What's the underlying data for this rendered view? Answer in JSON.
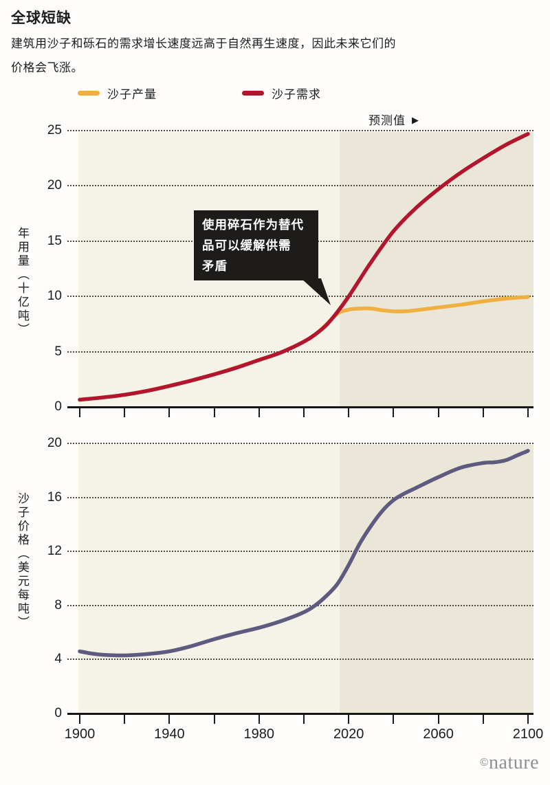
{
  "header": {
    "title": "全球短缺",
    "subtitle": "建筑用沙子和砾石的需求增长速度远高于自然再生速度，因此未来它们的\n价格会飞涨。"
  },
  "legend": {
    "items": [
      {
        "label": "沙子产量",
        "color": "#efb041"
      },
      {
        "label": "沙子需求",
        "color": "#b2162f"
      }
    ]
  },
  "forecast_label": {
    "text": "预测值",
    "arrow": "▶"
  },
  "annotation": {
    "text": "使用碎石作为替代\n品可以缓解供需\n矛盾"
  },
  "footer": {
    "credit_symbol": "©",
    "credit_text": "nature"
  },
  "colors": {
    "page_bg": "#fefdfb",
    "plot_bg_historical": "#f5f2e8",
    "plot_bg_forecast": "#eae7d8",
    "annotation_bg": "#1d1c1a",
    "grid": "#4f4c45",
    "axis": "#161616",
    "production_line": "#efb041",
    "demand_line": "#b2162f",
    "price_line": "#5f5b80",
    "credit_gray": "#8f8f8f"
  },
  "chart_data": [
    {
      "type": "line",
      "title": "",
      "xlabel": "",
      "ylabel": "年用量（十亿吨）",
      "xlim": [
        1900,
        2100
      ],
      "ylim": [
        0,
        25
      ],
      "yticks": [
        0,
        5,
        10,
        15,
        20,
        25
      ],
      "xticks": [
        1900,
        1920,
        1940,
        1960,
        1980,
        2000,
        2020,
        2040,
        2060,
        2080,
        2100
      ],
      "xtick_labels": [],
      "grid": "horizontal-dotted",
      "legend_position": "top",
      "forecast_start_year": 2016,
      "series": [
        {
          "name": "沙子产量",
          "color": "#efb041",
          "x": [
            1900,
            1920,
            1940,
            1960,
            1980,
            1990,
            2000,
            2005,
            2010,
            2015,
            2020,
            2025,
            2030,
            2035,
            2040,
            2045,
            2050,
            2060,
            2070,
            2080,
            2090,
            2100
          ],
          "y": [
            0.65,
            1.1,
            1.9,
            2.95,
            4.25,
            4.95,
            5.9,
            6.55,
            7.45,
            8.45,
            8.8,
            8.9,
            8.9,
            8.75,
            8.65,
            8.65,
            8.75,
            9.0,
            9.25,
            9.55,
            9.8,
            9.95
          ]
        },
        {
          "name": "沙子需求",
          "color": "#b2162f",
          "x": [
            1900,
            1910,
            1920,
            1930,
            1940,
            1950,
            1960,
            1970,
            1980,
            1990,
            2000,
            2005,
            2010,
            2015,
            2020,
            2025,
            2030,
            2040,
            2050,
            2060,
            2070,
            2080,
            2090,
            2100
          ],
          "y": [
            0.65,
            0.85,
            1.1,
            1.45,
            1.9,
            2.4,
            2.95,
            3.55,
            4.25,
            4.95,
            5.9,
            6.55,
            7.4,
            8.6,
            10.0,
            11.55,
            13.1,
            15.9,
            18.0,
            19.7,
            21.2,
            22.5,
            23.7,
            24.7
          ]
        }
      ],
      "annotation": {
        "text": "使用碎石作为替代品可以缓解供需矛盾",
        "points_to_year": 2014,
        "points_to_value": 9
      }
    },
    {
      "type": "line",
      "title": "",
      "xlabel": "",
      "ylabel": "沙子价格（美元每吨）",
      "xlim": [
        1900,
        2100
      ],
      "ylim": [
        0,
        20
      ],
      "yticks": [
        0,
        4,
        8,
        12,
        16,
        20
      ],
      "xticks": [
        1900,
        1920,
        1940,
        1960,
        1980,
        2000,
        2020,
        2040,
        2060,
        2080,
        2100
      ],
      "xtick_labels": [
        "1900",
        "1940",
        "1980",
        "2020",
        "2060",
        "2100"
      ],
      "xtick_label_years": [
        1900,
        1940,
        1980,
        2020,
        2060,
        2100
      ],
      "grid": "horizontal-dotted",
      "forecast_start_year": 2016,
      "series": [
        {
          "name": "沙子价格",
          "color": "#5f5b80",
          "x": [
            1900,
            1905,
            1910,
            1920,
            1930,
            1940,
            1950,
            1960,
            1970,
            1980,
            1990,
            2000,
            2005,
            2010,
            2015,
            2020,
            2025,
            2030,
            2035,
            2040,
            2045,
            2050,
            2060,
            2070,
            2080,
            2085,
            2090,
            2095,
            2100
          ],
          "y": [
            4.6,
            4.45,
            4.35,
            4.3,
            4.4,
            4.6,
            5.0,
            5.5,
            5.95,
            6.35,
            6.85,
            7.5,
            8.0,
            8.7,
            9.6,
            11.0,
            12.6,
            13.9,
            15.0,
            15.8,
            16.3,
            16.7,
            17.5,
            18.2,
            18.55,
            18.6,
            18.75,
            19.1,
            19.45
          ]
        }
      ]
    }
  ]
}
